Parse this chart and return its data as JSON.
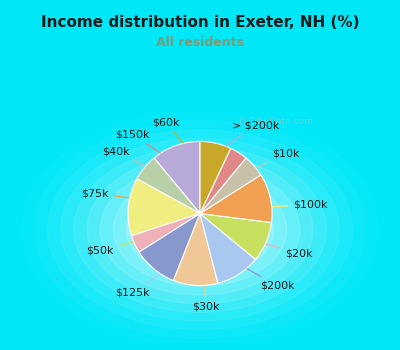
{
  "title": "Income distribution in Exeter, NH (%)",
  "subtitle": "All residents",
  "title_color": "#1a1a1a",
  "subtitle_color": "#7a9a7a",
  "background_cyan": "#00e8f8",
  "background_inner": "#e0f0e8",
  "watermark": "City-Data.com",
  "labels": [
    "> $200k",
    "$10k",
    "$100k",
    "$20k",
    "$200k",
    "$30k",
    "$125k",
    "$50k",
    "$75k",
    "$40k",
    "$150k",
    "$60k"
  ],
  "values": [
    11,
    6,
    13,
    4,
    10,
    10,
    10,
    9,
    11,
    5,
    4,
    7
  ],
  "colors": [
    "#b8aad8",
    "#b8d0a8",
    "#f0ee80",
    "#f0b0b8",
    "#8898cc",
    "#f0c898",
    "#a8c8f0",
    "#c8e060",
    "#f0a050",
    "#c8c0a8",
    "#e08888",
    "#c8a828"
  ],
  "label_fontsize": 8,
  "startangle": 90
}
